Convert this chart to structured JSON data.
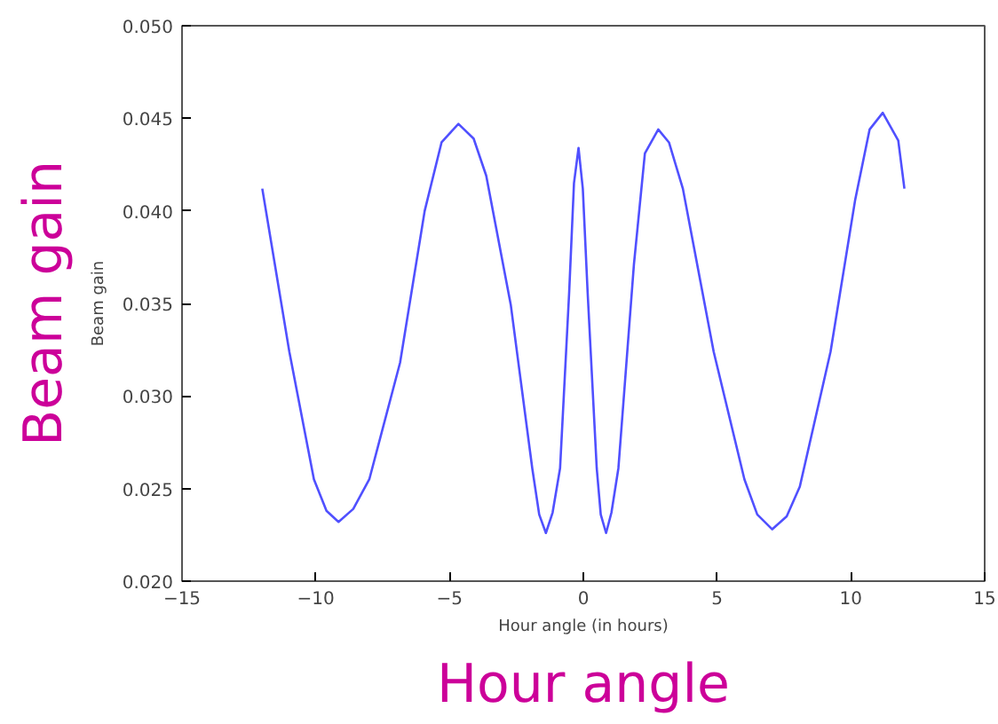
{
  "chart_data": {
    "type": "line",
    "xlabel": "Hour angle (in hours)",
    "ylabel": "Beam gain",
    "annotations": [
      "Beam gain",
      "Hour angle"
    ],
    "series": [
      {
        "color": "#5050ff",
        "x": [
          -12.0,
          -10.99,
          -10.07,
          -9.6,
          -9.15,
          -8.6,
          -8.0,
          -6.85,
          -5.93,
          -5.3,
          -4.67,
          -4.1,
          -3.63,
          -2.71,
          -1.91,
          -1.65,
          -1.4,
          -1.15,
          -0.87,
          -0.53,
          -0.35,
          -0.18,
          -0.02,
          0.16,
          0.5,
          0.65,
          0.85,
          1.05,
          1.31,
          1.89,
          2.3,
          2.8,
          3.2,
          3.72,
          4.87,
          6.02,
          6.5,
          7.06,
          7.6,
          8.09,
          9.24,
          10.16,
          10.7,
          11.19,
          11.77,
          12.0
        ],
        "values": [
          0.0412,
          0.0324,
          0.0255,
          0.0238,
          0.0232,
          0.0239,
          0.0255,
          0.0318,
          0.04,
          0.0437,
          0.0447,
          0.0439,
          0.0419,
          0.0349,
          0.0261,
          0.0236,
          0.0226,
          0.0237,
          0.0261,
          0.0356,
          0.0415,
          0.0434,
          0.0412,
          0.0356,
          0.0261,
          0.0236,
          0.0226,
          0.0237,
          0.0261,
          0.0371,
          0.0431,
          0.0444,
          0.0437,
          0.0412,
          0.0324,
          0.0255,
          0.0236,
          0.0228,
          0.0235,
          0.0251,
          0.0324,
          0.0406,
          0.0444,
          0.0453,
          0.0438,
          0.0412
        ]
      }
    ],
    "xlim": [
      -15,
      15
    ],
    "ylim": [
      0.02,
      0.05
    ],
    "xticks": [
      {
        "value": -15,
        "label": "−15"
      },
      {
        "value": -10,
        "label": "−10"
      },
      {
        "value": -5,
        "label": "−5"
      },
      0,
      5,
      10,
      15
    ],
    "yticks": [
      {
        "value": 0.02,
        "label": "0.020"
      },
      {
        "value": 0.025,
        "label": "0.025"
      },
      {
        "value": 0.03,
        "label": "0.030"
      },
      {
        "value": 0.035,
        "label": "0.035"
      },
      {
        "value": 0.04,
        "label": "0.040"
      },
      {
        "value": 0.045,
        "label": "0.045"
      },
      {
        "value": 0.05,
        "label": "0.050"
      }
    ],
    "grid": false,
    "marker": "none",
    "line_style": "solid"
  }
}
